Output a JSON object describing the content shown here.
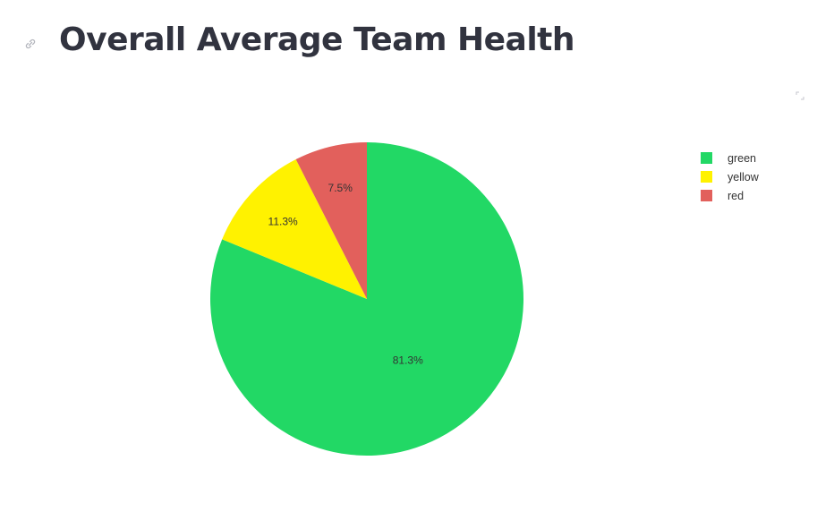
{
  "page": {
    "title": "Overall Average Team Health",
    "anchor_icon": "link-icon",
    "fullscreen_icon": "fullscreen-expand-icon"
  },
  "chart_data": {
    "type": "pie",
    "categories": [
      "green",
      "yellow",
      "red"
    ],
    "values": [
      81.3,
      11.3,
      7.5
    ],
    "labels": [
      "81.3%",
      "11.3%",
      "7.5%"
    ],
    "colors": [
      "#22d865",
      "#fff200",
      "#e2605c"
    ],
    "direction": "clockwise",
    "start": "12 o'clock",
    "legend": {
      "position": "top-right",
      "items": [
        {
          "label": "green",
          "color": "#22d865"
        },
        {
          "label": "yellow",
          "color": "#fff200"
        },
        {
          "label": "red",
          "color": "#e2605c"
        }
      ]
    }
  }
}
